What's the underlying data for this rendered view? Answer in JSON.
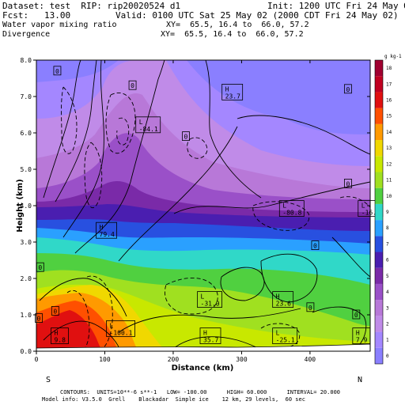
{
  "header": {
    "dataset": "Dataset: test  RIP: rip20020524 d1",
    "init": "Init: 1200 UTC Fri 24 May 02",
    "fcst": "Fcst:   13.00",
    "valid": "Valid: 0100 UTC Sat 25 May 02 (2000 CDT Fri 24 May 02)",
    "field1": "Water vapor mixing ratio",
    "xy1": "XY=  65.5, 16.4 to  66.0, 57.2",
    "field2": "Divergence",
    "xy2": "XY=  65.5, 16.4 to  66.0, 57.2"
  },
  "footer": {
    "line1": "CONTOURS:  UNITS=10**-6 s**-1   LOW= -100.00      HIGH= 60.000      INTERVAL= 20.000",
    "line2": "Model info: V3.5.0  Grell    Blackadar  Simple ice    12 km, 29 levels,  60 sec"
  },
  "chart_data": {
    "type": "heatmap",
    "title": "",
    "xlabel": "Distance (km)",
    "ylabel": "Height (km)",
    "xlim": [
      0,
      488
    ],
    "ylim": [
      0,
      8.0
    ],
    "x_ticks": [
      0,
      100,
      200,
      300,
      400
    ],
    "y_ticks": [
      "0.0",
      "1.0",
      "2.0",
      "3.0",
      "4.0",
      "5.0",
      "6.0",
      "7.0",
      "8.0"
    ],
    "x_end_labels": {
      "left": "S",
      "right": "N"
    },
    "colorbar": {
      "unit_label": "g kg-1",
      "levels": [
        "0",
        "1",
        "2",
        "3",
        "4",
        "5",
        "6",
        "7",
        "8",
        "9",
        "10",
        "11",
        "12",
        "13",
        "14",
        "15",
        "16",
        "17",
        "18"
      ],
      "colors": [
        "#8a7fff",
        "#a487ff",
        "#c08be8",
        "#b878d8",
        "#9a50c8",
        "#7a2aa8",
        "#4a1eb0",
        "#2850e0",
        "#2aa0ff",
        "#30d8c8",
        "#50d040",
        "#a0e020",
        "#c8e800",
        "#f0d800",
        "#ff9a00",
        "#ff5000",
        "#e01010",
        "#c00020",
        "#a00030"
      ]
    },
    "labels": [
      {
        "kind": "H",
        "value": "23.7",
        "x": 276,
        "y": 7.1
      },
      {
        "kind": "L",
        "value": "-84.1",
        "x": 150,
        "y": 6.2
      },
      {
        "kind": "H",
        "value": "79.4",
        "x": 92,
        "y": 3.3
      },
      {
        "kind": "L",
        "value": "-80.8",
        "x": 360,
        "y": 3.9
      },
      {
        "kind": "L",
        "value": "-16.2",
        "x": 475,
        "y": 3.9
      },
      {
        "kind": "L",
        "value": "-31.0",
        "x": 240,
        "y": 1.4
      },
      {
        "kind": "H",
        "value": "23.6",
        "x": 350,
        "y": 1.4
      },
      {
        "kind": "L",
        "value": "-100.1",
        "x": 107,
        "y": 0.6
      },
      {
        "kind": "H",
        "value": "9.8",
        "x": 26,
        "y": 0.4
      },
      {
        "kind": "H",
        "value": "35.7",
        "x": 244,
        "y": 0.4
      },
      {
        "kind": "L",
        "value": "-25.1",
        "x": 350,
        "y": 0.4
      },
      {
        "kind": "H",
        "value": "7.9",
        "x": 467,
        "y": 0.4
      }
    ],
    "zero_labels": [
      {
        "value": "0",
        "x": 30,
        "y": 7.7
      },
      {
        "value": "0",
        "x": 140,
        "y": 7.3
      },
      {
        "value": "0",
        "x": 455,
        "y": 7.2
      },
      {
        "value": "0",
        "x": 218,
        "y": 5.9
      },
      {
        "value": "0",
        "x": 455,
        "y": 4.6
      },
      {
        "value": "0",
        "x": 407,
        "y": 2.9
      },
      {
        "value": "0",
        "x": 5,
        "y": 2.3
      },
      {
        "value": "0",
        "x": 400,
        "y": 1.2
      },
      {
        "value": "0",
        "x": 3,
        "y": 0.9
      },
      {
        "value": "0",
        "x": 27,
        "y": 1.1
      },
      {
        "value": "0",
        "x": 467,
        "y": 1.0
      }
    ]
  }
}
